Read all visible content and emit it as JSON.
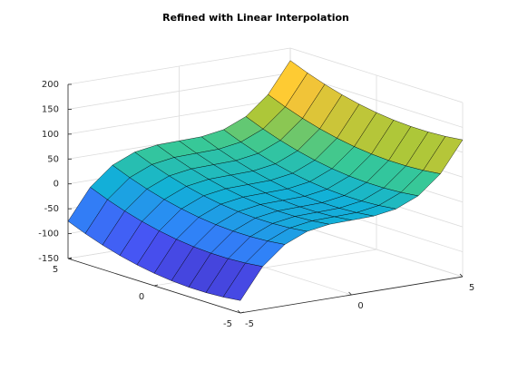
{
  "chart_data": {
    "type": "surface",
    "title": "Refined with Linear Interpolation",
    "colormap": "parula",
    "x": [
      -5,
      -4,
      -3,
      -2,
      -1,
      0,
      1,
      2,
      3,
      4,
      5
    ],
    "y": [
      -5,
      -4,
      -3,
      -2,
      -1,
      0,
      1,
      2,
      3,
      4,
      5
    ],
    "z": [
      [
        -125,
        -64,
        -27,
        -8,
        -1,
        0,
        1,
        8,
        27,
        64,
        125
      ],
      [
        -129,
        -68,
        -31,
        -12,
        -5,
        -4,
        -3,
        4,
        23,
        60,
        121
      ],
      [
        -131,
        -70,
        -33,
        -14,
        -7,
        -6,
        -5,
        2,
        21,
        58,
        119
      ],
      [
        -131,
        -70,
        -33,
        -14,
        -7,
        -6,
        -5,
        2,
        21,
        58,
        119
      ],
      [
        -129,
        -68,
        -31,
        -12,
        -5,
        -4,
        -3,
        4,
        23,
        60,
        121
      ],
      [
        -125,
        -64,
        -27,
        -8,
        -1,
        0,
        1,
        8,
        27,
        64,
        125
      ],
      [
        -119,
        -58,
        -21,
        -2,
        5,
        6,
        7,
        14,
        33,
        70,
        131
      ],
      [
        -111,
        -50,
        -13,
        6,
        13,
        14,
        15,
        22,
        41,
        78,
        139
      ],
      [
        -101,
        -40,
        -3,
        16,
        23,
        24,
        25,
        32,
        51,
        88,
        149
      ],
      [
        -89,
        -28,
        9,
        28,
        35,
        36,
        37,
        44,
        63,
        100,
        161
      ],
      [
        -75,
        -14,
        23,
        42,
        49,
        50,
        51,
        58,
        77,
        114,
        175
      ]
    ],
    "xlim": [
      -5,
      5
    ],
    "ylim": [
      -5,
      5
    ],
    "zlim": [
      -150,
      200
    ],
    "xticks": [
      -5,
      0,
      5
    ],
    "yticks": [
      -5,
      0,
      5
    ],
    "zticks": [
      -150,
      -100,
      -50,
      0,
      50,
      100,
      150,
      200
    ],
    "grid": true
  }
}
